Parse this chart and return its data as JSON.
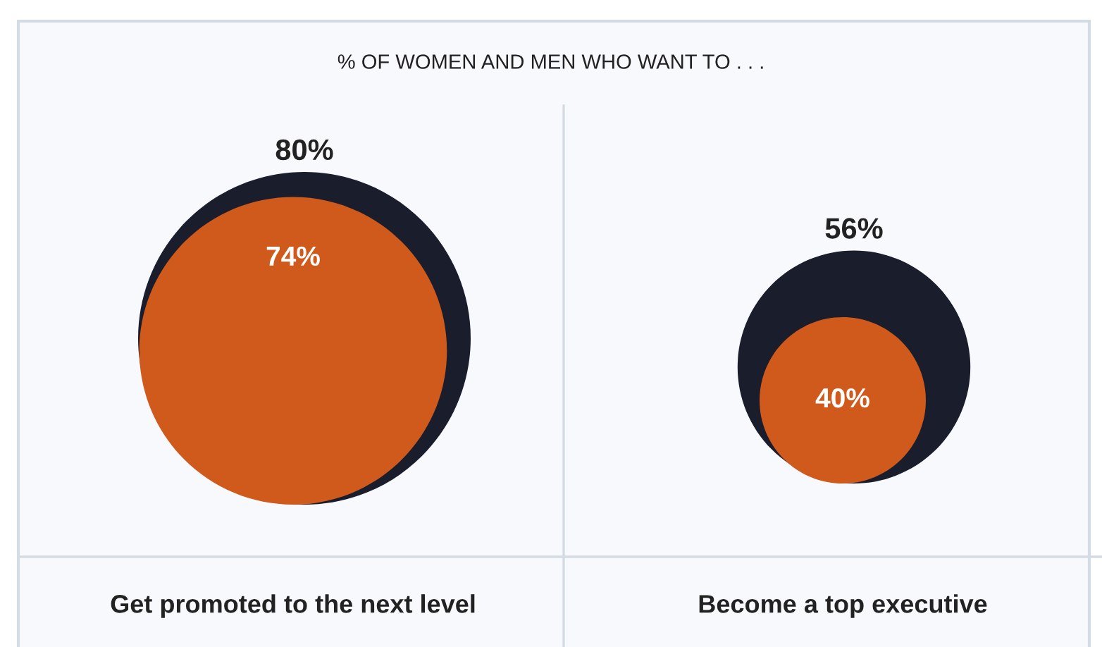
{
  "chart_data": {
    "type": "other",
    "title": "% OF WOMEN AND MEN WHO WANT TO . . .",
    "categories": [
      "Get promoted to the next level",
      "Become a top executive"
    ],
    "series": [
      {
        "color": "#1a1d2b",
        "values": [
          80,
          56
        ],
        "value_labels": [
          "80%",
          "56%"
        ]
      },
      {
        "color": "#cf5a1c",
        "values": [
          74,
          40
        ],
        "value_labels": [
          "74%",
          "40%"
        ]
      }
    ],
    "data_labels": true
  }
}
